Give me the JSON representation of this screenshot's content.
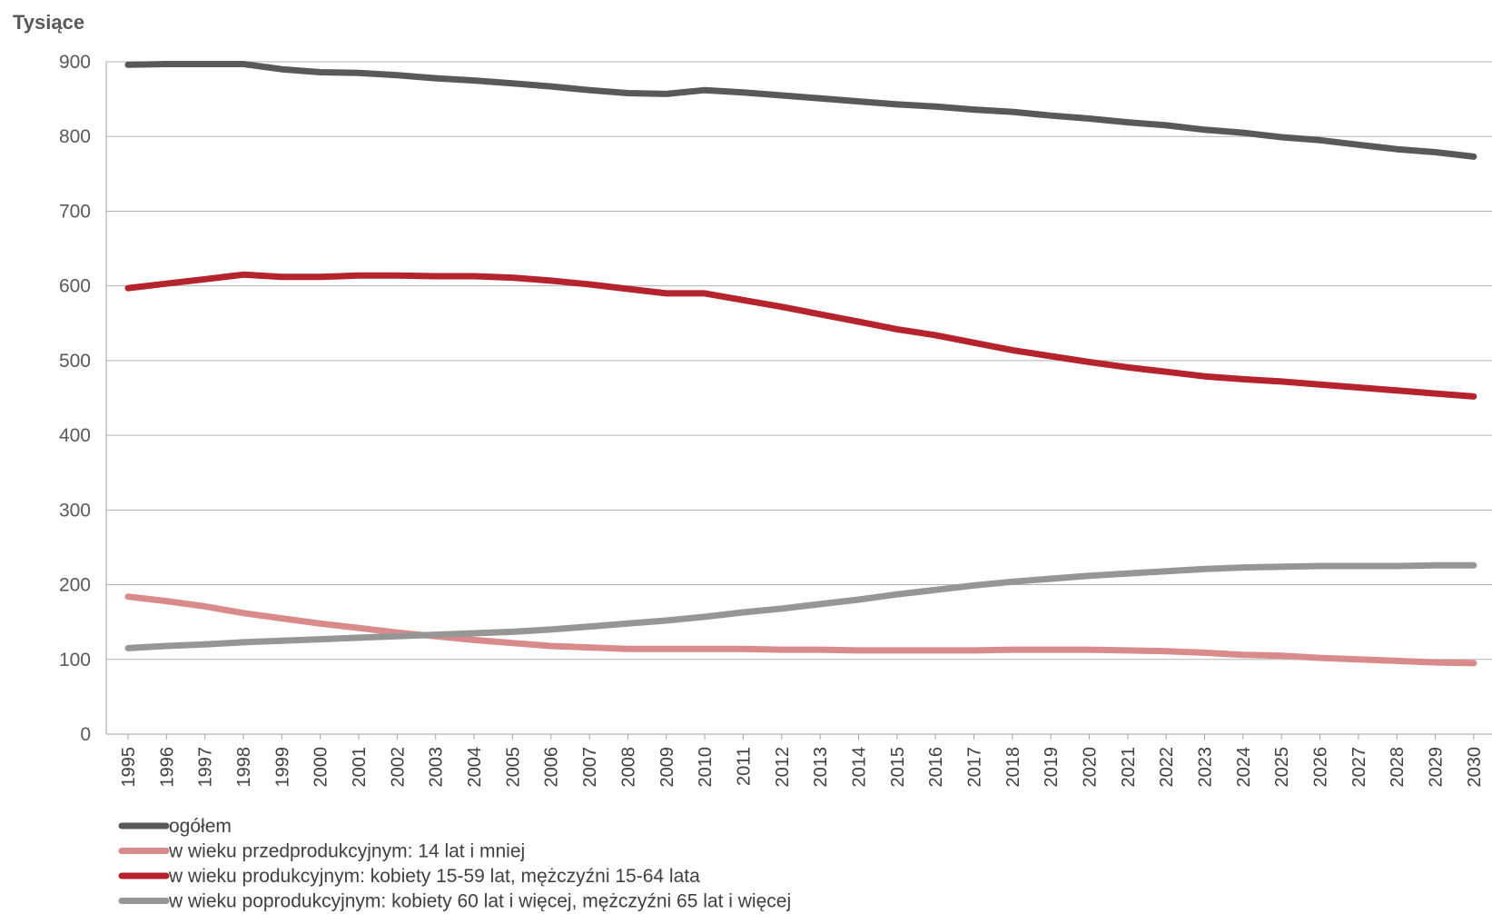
{
  "chart_data": {
    "type": "line",
    "ylabel": "Tysiące",
    "ylim": [
      0,
      900
    ],
    "yticks": [
      "0",
      "100",
      "200",
      "300",
      "400",
      "500",
      "600",
      "700",
      "800",
      "900"
    ],
    "grid": true,
    "legend_position": "bottom-left",
    "categories": [
      "1995",
      "1996",
      "1997",
      "1998",
      "1999",
      "2000",
      "2001",
      "2002",
      "2003",
      "2004",
      "2005",
      "2006",
      "2007",
      "2008",
      "2009",
      "2010",
      "2011",
      "2012",
      "2013",
      "2014",
      "2015",
      "2016",
      "2017",
      "2018",
      "2019",
      "2020",
      "2021",
      "2022",
      "2023",
      "2024",
      "2025",
      "2026",
      "2027",
      "2028",
      "2029",
      "2030"
    ],
    "series": [
      {
        "name": "ogółem",
        "color": "#595959",
        "values": [
          896,
          897,
          897,
          897,
          890,
          886,
          885,
          882,
          878,
          875,
          871,
          867,
          862,
          858,
          857,
          862,
          859,
          855,
          851,
          847,
          843,
          840,
          836,
          833,
          828,
          824,
          819,
          815,
          809,
          805,
          799,
          795,
          789,
          783,
          779,
          773
        ]
      },
      {
        "name": "w wieku przedprodukcyjnym: 14 lat i mniej",
        "color": "#d98b8b",
        "values": [
          184,
          178,
          171,
          162,
          155,
          148,
          142,
          136,
          131,
          126,
          122,
          118,
          116,
          114,
          114,
          114,
          114,
          113,
          113,
          112,
          112,
          112,
          112,
          113,
          113,
          113,
          112,
          111,
          109,
          106,
          105,
          102,
          100,
          98,
          96,
          95
        ]
      },
      {
        "name": "w wieku produkcyjnym: kobiety 15-59 lat, mężczyźni 15-64 lata",
        "color": "#b5232d",
        "values": [
          597,
          603,
          609,
          615,
          612,
          612,
          614,
          614,
          613,
          613,
          611,
          607,
          602,
          596,
          590,
          590,
          581,
          572,
          562,
          552,
          542,
          534,
          524,
          514,
          506,
          498,
          491,
          485,
          479,
          475,
          472,
          468,
          464,
          460,
          456,
          452
        ]
      },
      {
        "name": "w wieku poprodukcyjnym: kobiety 60 lat i więcej, mężczyźni 65 lat i więcej",
        "color": "#969696",
        "values": [
          115,
          118,
          120,
          123,
          125,
          127,
          129,
          131,
          133,
          135,
          137,
          140,
          144,
          148,
          152,
          157,
          163,
          168,
          174,
          180,
          187,
          193,
          199,
          204,
          208,
          212,
          215,
          218,
          221,
          223,
          224,
          225,
          225,
          225,
          226,
          226
        ]
      }
    ]
  }
}
